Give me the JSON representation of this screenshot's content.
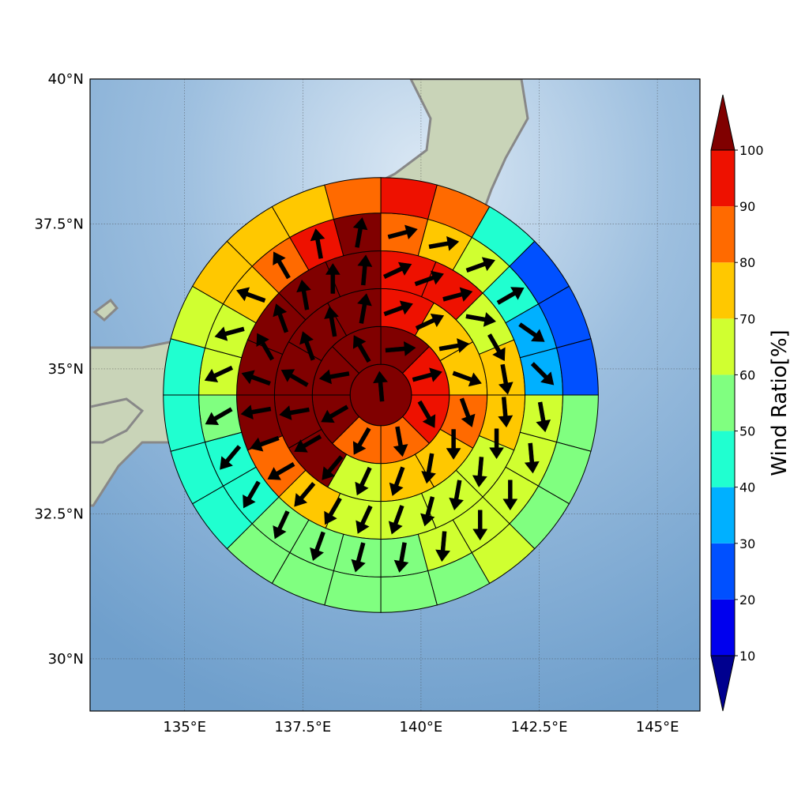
{
  "map": {
    "axes": {
      "lon_ticks": [
        {
          "value": 135,
          "label": "135°E"
        },
        {
          "value": 137.5,
          "label": "137.5°E"
        },
        {
          "value": 140,
          "label": "140°E"
        },
        {
          "value": 142.5,
          "label": "142.5°E"
        },
        {
          "value": 145,
          "label": "145°E"
        }
      ],
      "lat_ticks": [
        {
          "value": 30,
          "label": "30°N"
        },
        {
          "value": 32.5,
          "label": "32.5°N"
        },
        {
          "value": 35,
          "label": "35°N"
        },
        {
          "value": 37.5,
          "label": "37.5°N"
        },
        {
          "value": 40,
          "label": "40°N"
        }
      ],
      "lon_range": [
        133,
        145.9
      ],
      "lat_range": [
        29.1,
        40
      ],
      "grid": true
    },
    "colors": {
      "ocean": "#7aa8d2",
      "land": "#c9d4b8",
      "coastline": "#888888"
    }
  },
  "chart_data": {
    "type": "polar-sector-heatmap-with-wind-vectors",
    "center": {
      "lon": 139.15,
      "lat": 34.55
    },
    "ring_radii_deg": [
      0.65,
      1.45,
      2.25,
      3.05,
      3.85,
      4.6
    ],
    "value_unit": "Wind Ratio[%]",
    "center_value": 100,
    "rings": [
      {
        "ring": 1,
        "values": [
          100,
          90,
          90,
          80,
          80,
          100,
          100,
          100
        ]
      },
      {
        "ring": 2,
        "values": [
          90,
          70,
          70,
          80,
          70,
          70,
          60,
          100,
          100,
          100,
          100,
          100
        ]
      },
      {
        "ring": 3,
        "values": [
          90,
          90,
          60,
          70,
          70,
          60,
          60,
          60,
          60,
          70,
          80,
          100,
          100,
          100,
          100,
          100
        ]
      },
      {
        "ring": 4,
        "values": [
          80,
          70,
          60,
          40,
          30,
          30,
          60,
          60,
          60,
          60,
          60,
          50,
          50,
          50,
          50,
          40,
          40,
          50,
          60,
          60,
          70,
          80,
          90,
          100
        ]
      },
      {
        "ring": 5,
        "values": [
          90,
          80,
          40,
          20,
          20,
          20,
          50,
          50,
          50,
          60,
          50,
          50,
          50,
          50,
          50,
          40,
          40,
          40,
          40,
          60,
          70,
          70,
          70,
          80
        ]
      }
    ],
    "wind_angles_deg": [
      {
        "ring": 0,
        "angles": [
          95
        ]
      },
      {
        "ring": 1,
        "angles": [
          5,
          15,
          -60,
          -80,
          -120,
          -150,
          -170,
          120
        ]
      },
      {
        "ring": 2,
        "angles": [
          20,
          25,
          10,
          -20,
          -70,
          -90,
          -100,
          -110,
          -115,
          -130,
          -150,
          -170,
          150,
          110,
          100,
          80
        ]
      },
      {
        "ring": 3,
        "angles": [
          25,
          20,
          15,
          -10,
          -60,
          -80,
          -85,
          -90,
          -95,
          -100,
          -105,
          -110,
          -115,
          -120,
          -130,
          -150,
          -160,
          -170,
          160,
          120,
          110,
          100,
          90,
          85
        ]
      },
      {
        "ring": 4,
        "angles": [
          15,
          10,
          20,
          30,
          -35,
          -45,
          -80,
          -85,
          -90,
          -90,
          -95,
          -100,
          -105,
          -110,
          -115,
          -120,
          -130,
          -150,
          -155,
          -165,
          160,
          120,
          100,
          80
        ]
      }
    ],
    "colorbar": {
      "label": "Wind Ratio[%]",
      "ticks": [
        10,
        20,
        30,
        40,
        50,
        60,
        70,
        80,
        90,
        100
      ],
      "bins": [
        {
          "from": 0,
          "to": 10,
          "color": "#00008f"
        },
        {
          "from": 10,
          "to": 20,
          "color": "#0000ee"
        },
        {
          "from": 20,
          "to": 30,
          "color": "#0050ff"
        },
        {
          "from": 30,
          "to": 40,
          "color": "#00b0ff"
        },
        {
          "from": 40,
          "to": 50,
          "color": "#20ffd0"
        },
        {
          "from": 50,
          "to": 60,
          "color": "#80ff80"
        },
        {
          "from": 60,
          "to": 70,
          "color": "#d0ff30"
        },
        {
          "from": 70,
          "to": 80,
          "color": "#ffc800"
        },
        {
          "from": 80,
          "to": 90,
          "color": "#ff6a00"
        },
        {
          "from": 90,
          "to": 100,
          "color": "#ee1100"
        },
        {
          "from": 100,
          "to": 110,
          "color": "#800000"
        }
      ]
    }
  }
}
